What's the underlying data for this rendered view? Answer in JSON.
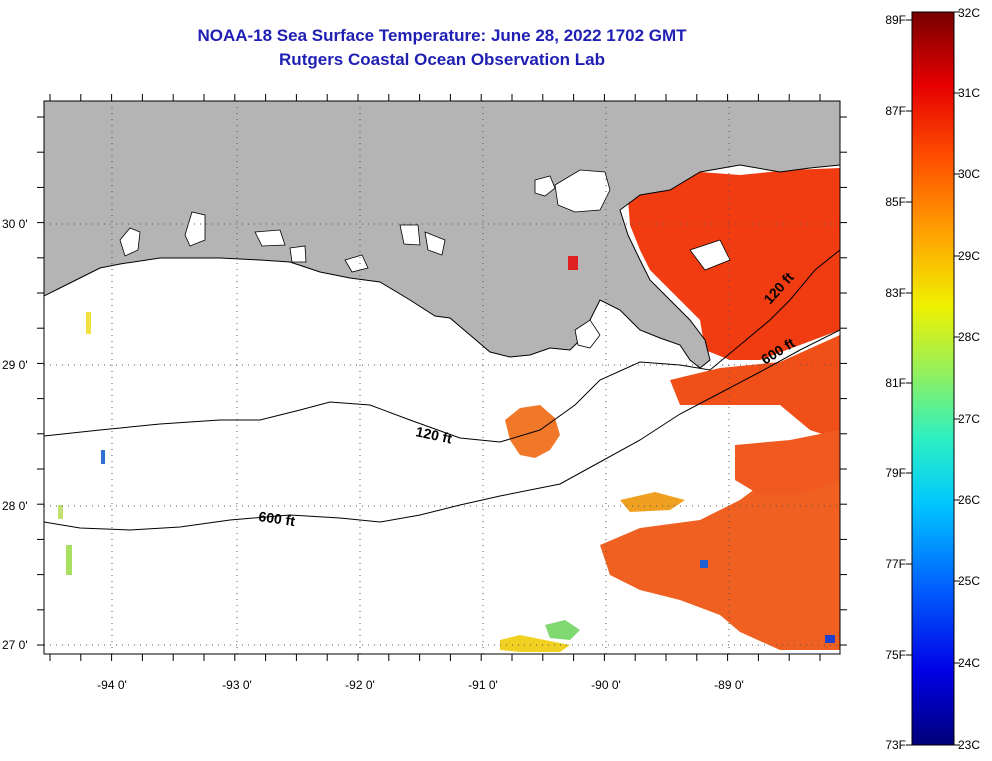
{
  "title": {
    "line1": "NOAA-18 Sea Surface Temperature:  June 28, 2022 1702 GMT",
    "line2": "Rutgers Coastal Ocean Observation Lab"
  },
  "axes": {
    "lon_labels": [
      "-94 0'",
      "-93 0'",
      "-92 0'",
      "-91 0'",
      "-90 0'",
      "-89 0'"
    ],
    "lat_labels": [
      "30 0'",
      "29 0'",
      "28 0'",
      "27 0'"
    ]
  },
  "contours": {
    "label_120_a": "120 ft",
    "label_120_b": "120 ft",
    "label_600_a": "600 ft",
    "label_600_b": "600 ft"
  },
  "colorbar": {
    "fahrenheit": [
      "89F",
      "87F",
      "85F",
      "83F",
      "81F",
      "79F",
      "77F",
      "75F",
      "73F"
    ],
    "celsius": [
      "32C",
      "31C",
      "30C",
      "29C",
      "28C",
      "27C",
      "26C",
      "25C",
      "24C",
      "23C"
    ]
  },
  "colors": {
    "land": "#b4b4b4",
    "title": "#1f1fb4"
  }
}
